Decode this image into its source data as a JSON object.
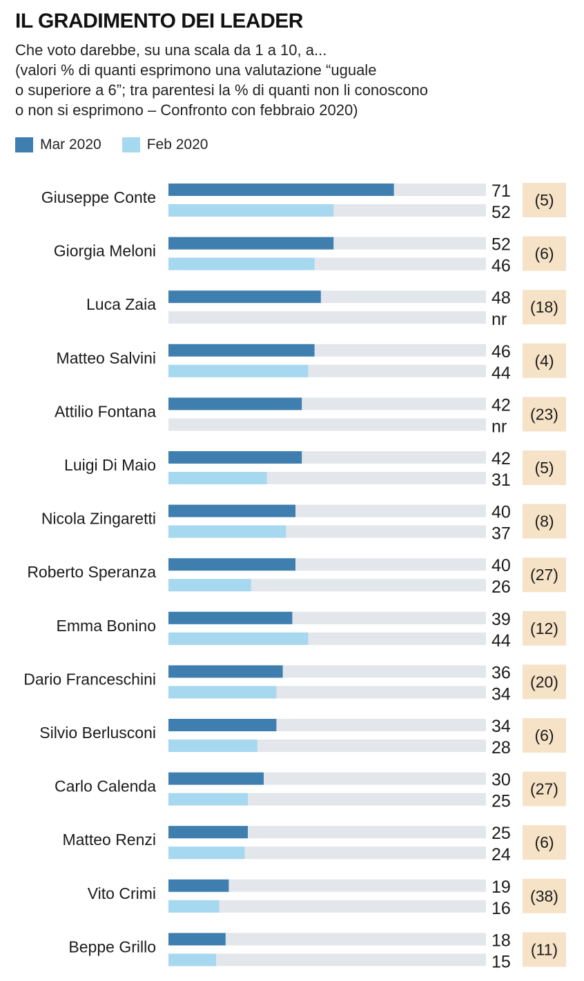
{
  "chart_data": {
    "type": "bar",
    "title": "IL GRADIMENTO DEI LEADER",
    "subtitle_lines": [
      "Che voto darebbe, su una scala da 1 a 10, a...",
      "(valori % di quanti esprimono una valutazione “uguale",
      "o superiore a 6”; tra parentesi la % di quanti non li conoscono",
      "o non si esprimono – Confronto con febbraio 2020)"
    ],
    "xlim": [
      0,
      100
    ],
    "legend_position": "top-left",
    "series": [
      {
        "name": "Mar 2020",
        "color": "#3f7fb0"
      },
      {
        "name": "Feb 2020",
        "color": "#a6d8f0"
      }
    ],
    "track_color": "#e3e6ea",
    "paren_bg_color": "#f6e2c6",
    "categories": [
      {
        "name": "Giuseppe Conte",
        "mar": 71,
        "feb": 52,
        "mar_label": "71",
        "feb_label": "52",
        "paren": "(5)"
      },
      {
        "name": "Giorgia Meloni",
        "mar": 52,
        "feb": 46,
        "mar_label": "52",
        "feb_label": "46",
        "paren": "(6)"
      },
      {
        "name": "Luca Zaia",
        "mar": 48,
        "feb": null,
        "mar_label": "48",
        "feb_label": "nr",
        "paren": "(18)"
      },
      {
        "name": "Matteo Salvini",
        "mar": 46,
        "feb": 44,
        "mar_label": "46",
        "feb_label": "44",
        "paren": "(4)"
      },
      {
        "name": "Attilio Fontana",
        "mar": 42,
        "feb": null,
        "mar_label": "42",
        "feb_label": "nr",
        "paren": "(23)"
      },
      {
        "name": "Luigi Di Maio",
        "mar": 42,
        "feb": 31,
        "mar_label": "42",
        "feb_label": "31",
        "paren": "(5)"
      },
      {
        "name": "Nicola Zingaretti",
        "mar": 40,
        "feb": 37,
        "mar_label": "40",
        "feb_label": "37",
        "paren": "(8)"
      },
      {
        "name": "Roberto Speranza",
        "mar": 40,
        "feb": 26,
        "mar_label": "40",
        "feb_label": "26",
        "paren": "(27)"
      },
      {
        "name": "Emma Bonino",
        "mar": 39,
        "feb": 44,
        "mar_label": "39",
        "feb_label": "44",
        "paren": "(12)"
      },
      {
        "name": "Dario Franceschini",
        "mar": 36,
        "feb": 34,
        "mar_label": "36",
        "feb_label": "34",
        "paren": "(20)"
      },
      {
        "name": "Silvio Berlusconi",
        "mar": 34,
        "feb": 28,
        "mar_label": "34",
        "feb_label": "28",
        "paren": "(6)"
      },
      {
        "name": "Carlo Calenda",
        "mar": 30,
        "feb": 25,
        "mar_label": "30",
        "feb_label": "25",
        "paren": "(27)"
      },
      {
        "name": "Matteo Renzi",
        "mar": 25,
        "feb": 24,
        "mar_label": "25",
        "feb_label": "24",
        "paren": "(6)"
      },
      {
        "name": "Vito Crimi",
        "mar": 19,
        "feb": 16,
        "mar_label": "19",
        "feb_label": "16",
        "paren": "(38)"
      },
      {
        "name": "Beppe Grillo",
        "mar": 18,
        "feb": 15,
        "mar_label": "18",
        "feb_label": "15",
        "paren": "(11)"
      }
    ]
  }
}
